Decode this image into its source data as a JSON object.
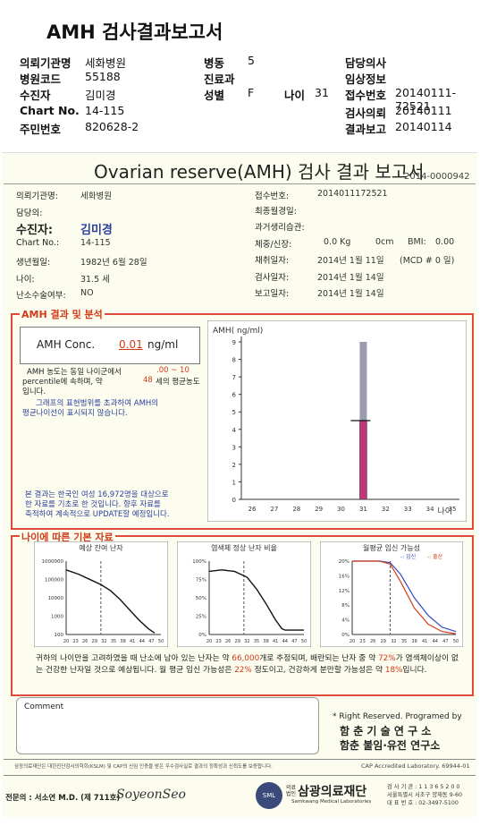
{
  "doc_title": "AMH 검사결과보고서",
  "header": {
    "rows": [
      {
        "l1": "의뢰기관명",
        "v1": "세화병원",
        "l2": "병동",
        "v2": "5",
        "l3": "담당의사",
        "v3": ""
      },
      {
        "l1": "병원코드",
        "v1": "55188",
        "l2": "진료과",
        "v2": "",
        "l3": "임상정보",
        "v3": ""
      },
      {
        "l1": "수진자",
        "v1": "김미경",
        "l2": "성별",
        "v2": "F",
        "age_label": "나이",
        "age": "31",
        "l3": "접수번호",
        "v3": "20140111-72521"
      },
      {
        "l1": "Chart No.",
        "v1": "14-115",
        "l2": "",
        "v2": "",
        "l3": "검사의뢰",
        "v3": "20140111"
      },
      {
        "l1": "주민번호",
        "v1": "820628-2",
        "l2": "",
        "v2": "",
        "l3": "결과보고",
        "v3": "20140114"
      }
    ]
  },
  "report": {
    "title": "Ovarian reserve(AMH) 검사 결과 보고서",
    "number": "2014-0000942",
    "left": {
      "inst_label": "의뢰기관명:",
      "inst": "세화병원",
      "doctor_label": "담당의:",
      "patient_label": "수진자:",
      "patient": "김미경",
      "chart_label": "Chart No.:",
      "chart": "14-115",
      "dob_label": "생년월일:",
      "dob": "1982년 6월 28일",
      "age_label": "나이:",
      "age": "31.5 세",
      "surgery_label": "난소수술여부:",
      "surgery": "NO"
    },
    "right": {
      "recv_label": "접수번호:",
      "recv": "2014011172521",
      "lmp_label": "최종월경일:",
      "history_label": "과거생리습관:",
      "body_label": "체중/신장:",
      "weight": "0.0 Kg",
      "height": "0cm",
      "bmi_label": "BMI:",
      "bmi": "0.00",
      "draw_label": "채취일자:",
      "draw": "2014년 1월 11일",
      "mcd": "(MCD # 0 일)",
      "test_label": "검사일자:",
      "test": "2014년 1월 14일",
      "report_label": "보고일자:",
      "report": "2014년 1월 14일"
    }
  },
  "amh": {
    "section": "AMH 결과 및 분석",
    "conc_label": "AMH Conc.",
    "conc_value": "0.01",
    "conc_unit": "ng/ml",
    "text1a": "AMH 농도는 동일 나이군에서",
    "pct_range": ".00 ~ 10",
    "text1b": "percentile에 속하며, 약",
    "equiv_age": "48",
    "text1c": "세의 평균농도",
    "text1d": "입니다.",
    "note1": "그래프의 표현범위를 초과하여 AMH의",
    "note2": "평균나이선이 표시되지 않습니다.",
    "foot1": "본 결과는 한국인 여성 16,972명을 대상으로",
    "foot2": "한 자료를 기초로 한 것입니다. 향후 자료를",
    "foot3": "축적하여 계속적으로 UPDATE할 예정입니다."
  },
  "chart_data": [
    {
      "type": "bar",
      "ylabel": "AMH( ng/ml)",
      "xlabel": "나이",
      "x_ticks": [
        "26",
        "27",
        "28",
        "29",
        "30",
        "31",
        "32",
        "33",
        "34",
        "35"
      ],
      "y_ticks": [
        "0",
        "1",
        "2",
        "3",
        "4",
        "5",
        "6",
        "7",
        "8",
        "9"
      ],
      "ylim": [
        0,
        9
      ],
      "x": 31,
      "series": [
        {
          "values": [
            4.5
          ],
          "color": "#c0367a"
        },
        {
          "values": [
            9
          ],
          "color": "#9a9ab0"
        }
      ],
      "marker_value": 4.5
    },
    {
      "type": "line",
      "title": "예상 잔여 난자",
      "y_ticks": [
        "100",
        "1000",
        "10000",
        "100000",
        "1000000"
      ],
      "x_ticks": [
        "20",
        "23",
        "26",
        "29",
        "32",
        "35",
        "38",
        "41",
        "44",
        "47",
        "50"
      ],
      "yscale": "log"
    },
    {
      "type": "line",
      "title": "염색체 정상 난자 비율",
      "y_ticks": [
        "0%",
        "25%",
        "50%",
        "75%",
        "100%"
      ],
      "x_ticks": [
        "20",
        "23",
        "26",
        "29",
        "32",
        "35",
        "38",
        "41",
        "44",
        "47",
        "50"
      ]
    },
    {
      "type": "line",
      "title": "월평균 임신 가능성",
      "legend": [
        "-: 임신",
        "-: 출산"
      ],
      "y_ticks": [
        "0%",
        "4%",
        "8%",
        "12%",
        "16%",
        "20%"
      ],
      "x_ticks": [
        "20",
        "23",
        "26",
        "29",
        "32",
        "35",
        "38",
        "41",
        "44",
        "47",
        "50"
      ]
    }
  ],
  "basic": {
    "section": "나이에 따른 기본 자료",
    "p1a": "귀하의 나이만을 고려하였을 때 난소에 남아 있는 난자는 약",
    "eggs": "66,000",
    "p1b": "개로 추정되며, 배란되는 난자 중",
    "p2a": "약",
    "normal": "72%",
    "p2b": "가 염색체이상이 없는 건강한 난자일 것으로 예상됩니다. 월 평균 임신 가능성은",
    "preg": "22%",
    "p2c": "정도이고,",
    "p3a": "건강하게 분만할 가능성은 약",
    "birth": "18%",
    "p3b": "입니다."
  },
  "footer": {
    "comment": "Comment",
    "rights": "* Right Reserved. Programed by",
    "org1": "함 춘 기 술 연 구 소",
    "org2": "함춘 불임·유전 연구소",
    "cert_line": "삼광의료재단은 대한진단검사의학회(KSLM) 및 CAP의 신임 인증을 받은 우수검사실로 결과의 정확성과 신뢰도를 보증합니다.",
    "cap": "CAP Accredited Laboratory. 69944-01",
    "specialist": "전문의 : 서소연 M.D. (제 711호)",
    "signature": "SoyeonSeo",
    "lab_name": "삼광의료재단",
    "lab_prefix1": "의료",
    "lab_prefix2": "법인",
    "lab_en": "Samkwang Medical Laboratories",
    "lab_code": "검 사 기 관 : 1 1 3 6 5 2 0 0",
    "lab_addr": "서울특별시 서초구 양재동 9-60",
    "lab_tel": "대 표 번 호 : 02-3497-5100",
    "logo": "SML"
  }
}
